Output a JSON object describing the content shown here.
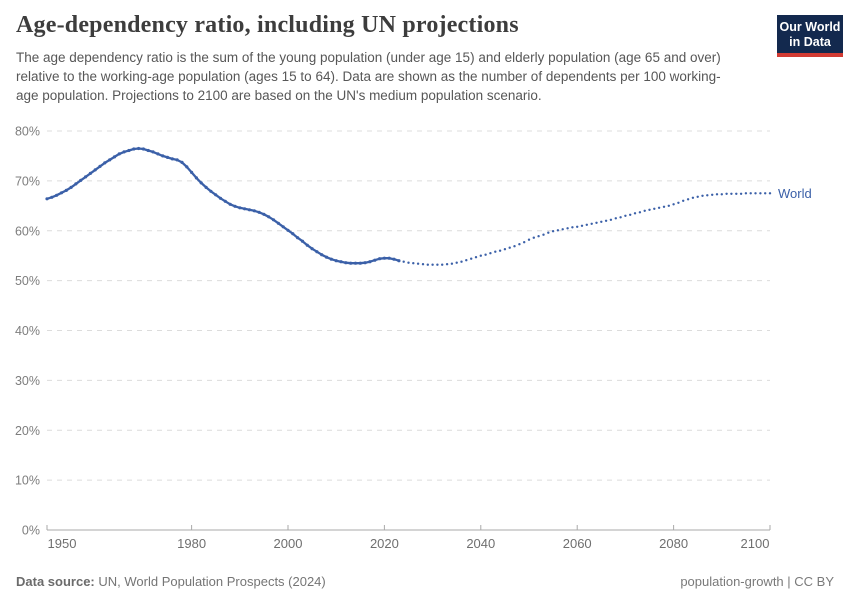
{
  "header": {
    "title": "Age-dependency ratio, including UN projections",
    "subtitle": "The age dependency ratio is the sum of the young population (under age 15) and elderly population (age 65 and over) relative to the working-age population (ages 15 to 64). Data are shown as the number of dependents per 100 working-age population. Projections to 2100 are based on the UN's medium population scenario.",
    "logo": {
      "line1": "Our World",
      "line2": "in Data",
      "bg_color": "#13294e",
      "accent_color": "#d23b33"
    }
  },
  "chart_data": {
    "type": "line",
    "title": "Age-dependency ratio, including UN projections",
    "xlabel": "",
    "ylabel": "",
    "unit": "%",
    "ylim": [
      0,
      80
    ],
    "xlim": [
      1950,
      2100
    ],
    "grid": true,
    "yticks": [
      0,
      10,
      20,
      30,
      40,
      50,
      60,
      70,
      80
    ],
    "xticks": [
      1950,
      1980,
      2000,
      2020,
      2040,
      2060,
      2080,
      2100
    ],
    "line_color": "#3b60a8",
    "grid_color": "#dcdcdc",
    "axis_color": "#a9a9a9",
    "end_label": "World",
    "end_label_value": 67.5,
    "series": [
      {
        "name": "World (estimates)",
        "style": "solid",
        "color": "#3b60a8",
        "points": [
          [
            1950,
            66.4
          ],
          [
            1951,
            66.7
          ],
          [
            1952,
            67.1
          ],
          [
            1953,
            67.6
          ],
          [
            1954,
            68.1
          ],
          [
            1955,
            68.7
          ],
          [
            1956,
            69.4
          ],
          [
            1957,
            70.1
          ],
          [
            1958,
            70.8
          ],
          [
            1959,
            71.5
          ],
          [
            1960,
            72.2
          ],
          [
            1961,
            72.9
          ],
          [
            1962,
            73.6
          ],
          [
            1963,
            74.2
          ],
          [
            1964,
            74.8
          ],
          [
            1965,
            75.4
          ],
          [
            1966,
            75.8
          ],
          [
            1967,
            76.1
          ],
          [
            1968,
            76.4
          ],
          [
            1969,
            76.5
          ],
          [
            1970,
            76.4
          ],
          [
            1971,
            76.1
          ],
          [
            1972,
            75.8
          ],
          [
            1973,
            75.4
          ],
          [
            1974,
            75.0
          ],
          [
            1975,
            74.7
          ],
          [
            1976,
            74.4
          ],
          [
            1977,
            74.2
          ],
          [
            1978,
            73.7
          ],
          [
            1979,
            72.8
          ],
          [
            1980,
            71.7
          ],
          [
            1981,
            70.6
          ],
          [
            1982,
            69.6
          ],
          [
            1983,
            68.7
          ],
          [
            1984,
            67.9
          ],
          [
            1985,
            67.2
          ],
          [
            1986,
            66.5
          ],
          [
            1987,
            65.9
          ],
          [
            1988,
            65.3
          ],
          [
            1989,
            64.9
          ],
          [
            1990,
            64.6
          ],
          [
            1991,
            64.4
          ],
          [
            1992,
            64.2
          ],
          [
            1993,
            64.0
          ],
          [
            1994,
            63.7
          ],
          [
            1995,
            63.3
          ],
          [
            1996,
            62.8
          ],
          [
            1997,
            62.2
          ],
          [
            1998,
            61.5
          ],
          [
            1999,
            60.8
          ],
          [
            2000,
            60.1
          ],
          [
            2001,
            59.4
          ],
          [
            2002,
            58.6
          ],
          [
            2003,
            57.9
          ],
          [
            2004,
            57.1
          ],
          [
            2005,
            56.4
          ],
          [
            2006,
            55.8
          ],
          [
            2007,
            55.2
          ],
          [
            2008,
            54.7
          ],
          [
            2009,
            54.3
          ],
          [
            2010,
            54.0
          ],
          [
            2011,
            53.8
          ],
          [
            2012,
            53.6
          ],
          [
            2013,
            53.5
          ],
          [
            2014,
            53.5
          ],
          [
            2015,
            53.5
          ],
          [
            2016,
            53.6
          ],
          [
            2017,
            53.8
          ],
          [
            2018,
            54.1
          ],
          [
            2019,
            54.4
          ],
          [
            2020,
            54.5
          ],
          [
            2021,
            54.5
          ],
          [
            2022,
            54.3
          ],
          [
            2023,
            54.0
          ]
        ]
      },
      {
        "name": "World (UN medium projection)",
        "style": "dotted",
        "color": "#3b60a8",
        "points": [
          [
            2024,
            53.8
          ],
          [
            2025,
            53.6
          ],
          [
            2026,
            53.5
          ],
          [
            2027,
            53.4
          ],
          [
            2028,
            53.3
          ],
          [
            2029,
            53.2
          ],
          [
            2030,
            53.2
          ],
          [
            2031,
            53.2
          ],
          [
            2032,
            53.2
          ],
          [
            2033,
            53.3
          ],
          [
            2034,
            53.4
          ],
          [
            2035,
            53.6
          ],
          [
            2036,
            53.8
          ],
          [
            2037,
            54.1
          ],
          [
            2038,
            54.4
          ],
          [
            2039,
            54.7
          ],
          [
            2040,
            55.0
          ],
          [
            2041,
            55.2
          ],
          [
            2042,
            55.5
          ],
          [
            2043,
            55.8
          ],
          [
            2044,
            56.0
          ],
          [
            2045,
            56.3
          ],
          [
            2046,
            56.6
          ],
          [
            2047,
            56.9
          ],
          [
            2048,
            57.3
          ],
          [
            2049,
            57.7
          ],
          [
            2050,
            58.2
          ],
          [
            2051,
            58.6
          ],
          [
            2052,
            58.9
          ],
          [
            2053,
            59.2
          ],
          [
            2054,
            59.6
          ],
          [
            2055,
            59.9
          ],
          [
            2056,
            60.1
          ],
          [
            2057,
            60.3
          ],
          [
            2058,
            60.5
          ],
          [
            2059,
            60.7
          ],
          [
            2060,
            60.8
          ],
          [
            2061,
            61.0
          ],
          [
            2062,
            61.2
          ],
          [
            2063,
            61.4
          ],
          [
            2064,
            61.6
          ],
          [
            2065,
            61.8
          ],
          [
            2066,
            62.0
          ],
          [
            2067,
            62.2
          ],
          [
            2068,
            62.5
          ],
          [
            2069,
            62.7
          ],
          [
            2070,
            63.0
          ],
          [
            2071,
            63.2
          ],
          [
            2072,
            63.5
          ],
          [
            2073,
            63.7
          ],
          [
            2074,
            64.0
          ],
          [
            2075,
            64.2
          ],
          [
            2076,
            64.4
          ],
          [
            2077,
            64.6
          ],
          [
            2078,
            64.8
          ],
          [
            2079,
            65.0
          ],
          [
            2080,
            65.3
          ],
          [
            2081,
            65.6
          ],
          [
            2082,
            66.0
          ],
          [
            2083,
            66.3
          ],
          [
            2084,
            66.6
          ],
          [
            2085,
            66.8
          ],
          [
            2086,
            67.0
          ],
          [
            2087,
            67.1
          ],
          [
            2088,
            67.2
          ],
          [
            2089,
            67.3
          ],
          [
            2090,
            67.3
          ],
          [
            2091,
            67.4
          ],
          [
            2092,
            67.4
          ],
          [
            2093,
            67.4
          ],
          [
            2094,
            67.4
          ],
          [
            2095,
            67.5
          ],
          [
            2096,
            67.5
          ],
          [
            2097,
            67.5
          ],
          [
            2098,
            67.5
          ],
          [
            2099,
            67.5
          ],
          [
            2100,
            67.5
          ]
        ]
      }
    ]
  },
  "footer": {
    "source_label": "Data source:",
    "source_text": "UN, World Population Prospects (2024)",
    "right_text": "population-growth | CC BY"
  }
}
